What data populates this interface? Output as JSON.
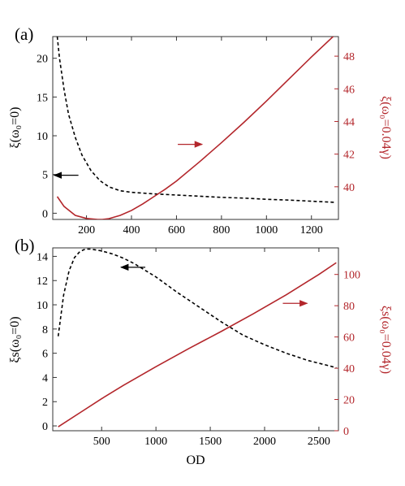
{
  "chart_data": [
    {
      "type": "line",
      "panel_label": "(a)",
      "xlabel": "",
      "ylabel_left": "ξ(ω₀=0)",
      "ylabel_right": "ξ(ω₀=0.04γ)",
      "xlim": [
        50,
        1320
      ],
      "ylim_left": [
        -0.8,
        22.8
      ],
      "ylim_right": [
        38.0,
        49.2
      ],
      "xticks": [
        200,
        400,
        600,
        800,
        1000,
        1200
      ],
      "yticks_left": [
        0,
        5,
        10,
        15,
        20
      ],
      "yticks_right": [
        40,
        42,
        44,
        46,
        48
      ],
      "series": [
        {
          "style": "dashed",
          "color": "#000000",
          "axis": "left",
          "x": [
            70,
            80,
            100,
            120,
            150,
            180,
            220,
            260,
            300,
            350,
            400,
            500,
            600,
            700,
            800,
            900,
            1000,
            1100,
            1200,
            1310
          ],
          "y": [
            22.8,
            20.0,
            16.0,
            12.8,
            9.8,
            7.5,
            5.5,
            4.2,
            3.4,
            2.9,
            2.7,
            2.5,
            2.35,
            2.2,
            2.05,
            1.95,
            1.8,
            1.7,
            1.55,
            1.4
          ]
        },
        {
          "style": "solid",
          "color": "#b3262b",
          "axis": "right",
          "x": [
            70,
            100,
            150,
            200,
            250,
            270,
            300,
            350,
            400,
            450,
            500,
            550,
            600,
            700,
            800,
            900,
            1000,
            1100,
            1200,
            1300,
            1310
          ],
          "y": [
            39.4,
            38.8,
            38.25,
            38.06,
            38.0,
            38.0,
            38.05,
            38.25,
            38.55,
            38.95,
            39.4,
            39.85,
            40.35,
            41.5,
            42.7,
            43.95,
            45.25,
            46.6,
            47.95,
            49.25,
            49.4
          ]
        }
      ],
      "arrows": [
        {
          "direction": "left",
          "color": "#000000",
          "x": 110,
          "y_left": 4.9
        },
        {
          "direction": "right",
          "color": "#b3262b",
          "x": 660,
          "y_right": 42.6
        }
      ]
    },
    {
      "type": "line",
      "panel_label": "(b)",
      "xlabel": "OD",
      "ylabel_left": "ξs(ω₀=0)",
      "ylabel_right": "ξs(ω₀=0.04γ)",
      "xlim": [
        50,
        2680
      ],
      "ylim_left": [
        -0.4,
        14.7
      ],
      "ylim_right": [
        0,
        117
      ],
      "xticks": [
        500,
        1000,
        1500,
        2000,
        2500
      ],
      "yticks_left": [
        0,
        2,
        4,
        6,
        8,
        10,
        12,
        14
      ],
      "yticks_right": [
        0,
        20,
        40,
        60,
        80,
        100
      ],
      "series": [
        {
          "style": "dashed",
          "color": "#000000",
          "axis": "left",
          "x": [
            100,
            150,
            200,
            250,
            300,
            350,
            400,
            500,
            600,
            700,
            800,
            1000,
            1200,
            1400,
            1600,
            1800,
            2000,
            2200,
            2400,
            2600,
            2660
          ],
          "y": [
            7.4,
            10.8,
            12.8,
            13.9,
            14.4,
            14.6,
            14.6,
            14.45,
            14.2,
            13.85,
            13.4,
            12.3,
            11.0,
            9.8,
            8.6,
            7.5,
            6.7,
            6.0,
            5.4,
            4.95,
            4.8
          ]
        },
        {
          "style": "solid",
          "color": "#b3262b",
          "axis": "right",
          "x": [
            100,
            300,
            500,
            700,
            1000,
            1300,
            1600,
            1900,
            2200,
            2500,
            2660
          ],
          "y": [
            2.5,
            11.5,
            20.5,
            29.0,
            41.0,
            52.5,
            63.5,
            75.0,
            87.0,
            100.0,
            107.5
          ]
        }
      ],
      "arrows": [
        {
          "direction": "left",
          "color": "#000000",
          "x": 790,
          "y_left": 13.1
        },
        {
          "direction": "right",
          "color": "#b3262b",
          "x": 2280,
          "y_right": 81.5
        }
      ]
    }
  ]
}
